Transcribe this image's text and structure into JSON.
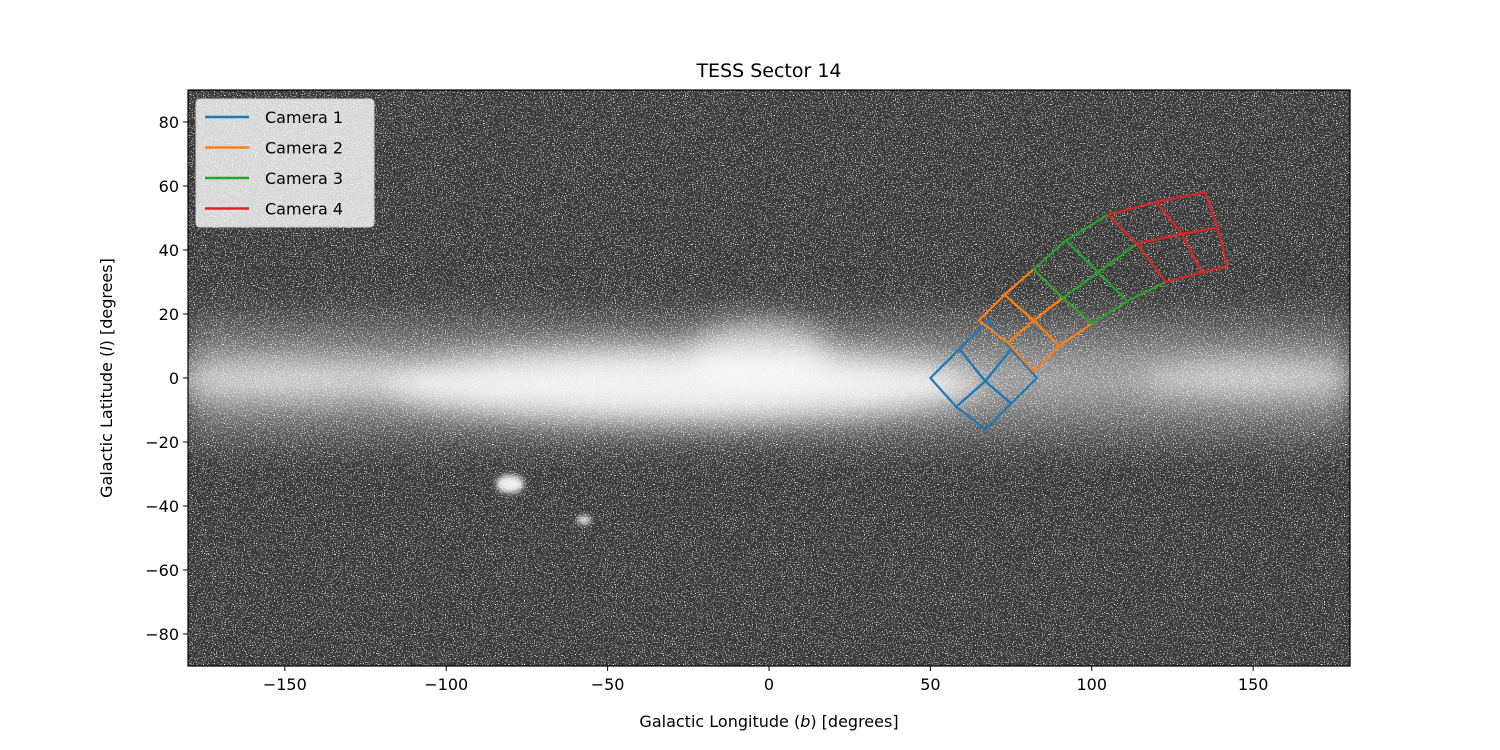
{
  "chart_data": {
    "type": "line",
    "title": "TESS Sector 14",
    "xlabel_parts": [
      "Galactic Longitude (",
      "b",
      ") [degrees]"
    ],
    "ylabel_parts": [
      "Galactic Latitude (",
      "l",
      ") [degrees]"
    ],
    "xlim": [
      -180,
      180
    ],
    "ylim": [
      -90,
      90
    ],
    "xticks": [
      -150,
      -100,
      -50,
      0,
      50,
      100,
      150
    ],
    "yticks": [
      -80,
      -60,
      -40,
      -20,
      0,
      20,
      40,
      60,
      80
    ],
    "xtick_labels": [
      "−150",
      "−100",
      "−50",
      "0",
      "50",
      "100",
      "150"
    ],
    "ytick_labels": [
      "−80",
      "−60",
      "−40",
      "−20",
      "0",
      "20",
      "40",
      "60",
      "80"
    ],
    "background": "grayscale all-sky star density map (Milky Way)",
    "legend_position": "top-left",
    "series": [
      {
        "name": "Camera 1",
        "color": "#1f77b4",
        "ccd_corners": [
          [
            [
              50,
              0
            ],
            [
              59,
              9
            ],
            [
              67,
              -1
            ],
            [
              58,
              -9
            ]
          ],
          [
            [
              59,
              9
            ],
            [
              68,
              18
            ],
            [
              75,
              9
            ],
            [
              67,
              -1
            ]
          ],
          [
            [
              58,
              -9
            ],
            [
              67,
              -1
            ],
            [
              75,
              -8
            ],
            [
              67,
              -16
            ]
          ],
          [
            [
              67,
              -1
            ],
            [
              75,
              9
            ],
            [
              83,
              0
            ],
            [
              75,
              -8
            ]
          ]
        ]
      },
      {
        "name": "Camera 2",
        "color": "#ff7f0e",
        "ccd_corners": [
          [
            [
              65,
              18
            ],
            [
              73,
              26
            ],
            [
              82,
              18
            ],
            [
              74,
              11
            ]
          ],
          [
            [
              73,
              26
            ],
            [
              82,
              34
            ],
            [
              91,
              25
            ],
            [
              82,
              18
            ]
          ],
          [
            [
              74,
              11
            ],
            [
              82,
              18
            ],
            [
              90,
              10
            ],
            [
              82,
              2
            ]
          ],
          [
            [
              82,
              18
            ],
            [
              91,
              25
            ],
            [
              100,
              17
            ],
            [
              90,
              10
            ]
          ]
        ]
      },
      {
        "name": "Camera 3",
        "color": "#2ca02c",
        "ccd_corners": [
          [
            [
              82,
              34
            ],
            [
              92,
              43
            ],
            [
              102,
              33
            ],
            [
              91,
              25
            ]
          ],
          [
            [
              92,
              43
            ],
            [
              105,
              51
            ],
            [
              114,
              42
            ],
            [
              102,
              33
            ]
          ],
          [
            [
              91,
              25
            ],
            [
              102,
              33
            ],
            [
              111,
              24
            ],
            [
              100,
              17
            ]
          ],
          [
            [
              102,
              33
            ],
            [
              114,
              42
            ],
            [
              123,
              30
            ],
            [
              111,
              24
            ]
          ]
        ]
      },
      {
        "name": "Camera 4",
        "color": "#d62728",
        "ccd_corners": [
          [
            [
              105,
              51
            ],
            [
              120,
              55
            ],
            [
              128,
              45
            ],
            [
              114,
              42
            ]
          ],
          [
            [
              120,
              55
            ],
            [
              135,
              58
            ],
            [
              139,
              47
            ],
            [
              128,
              45
            ]
          ],
          [
            [
              114,
              42
            ],
            [
              128,
              45
            ],
            [
              134,
              33
            ],
            [
              123,
              30
            ]
          ],
          [
            [
              128,
              45
            ],
            [
              139,
              47
            ],
            [
              142,
              35
            ],
            [
              134,
              33
            ]
          ]
        ]
      }
    ]
  }
}
